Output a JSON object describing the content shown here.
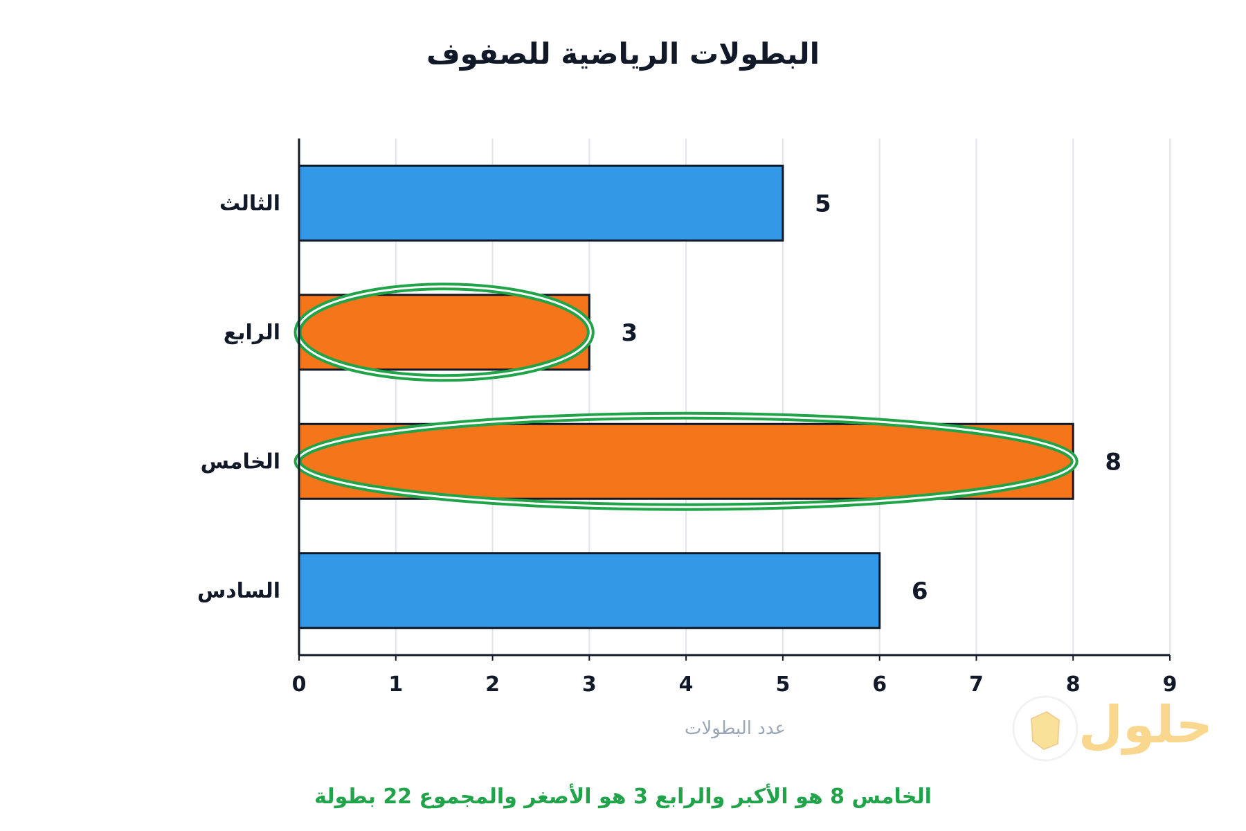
{
  "chart_data": {
    "type": "bar",
    "orientation": "horizontal",
    "title": "البطولات الرياضية للصفوف",
    "xlabel": "عدد البطولات",
    "ylabel": "",
    "categories": [
      "الثالث",
      "الرابع",
      "الخامس",
      "السادس"
    ],
    "values": [
      5,
      3,
      8,
      6
    ],
    "data_labels": [
      "5",
      "3",
      "8",
      "6"
    ],
    "highlighted": [
      false,
      true,
      true,
      false
    ],
    "xlim": [
      0,
      9
    ],
    "xticks": [
      0,
      1,
      2,
      3,
      4,
      5,
      6,
      7,
      8,
      9
    ],
    "xtick_labels": [
      "0",
      "1",
      "2",
      "3",
      "4",
      "5",
      "6",
      "7",
      "8",
      "9"
    ],
    "grid": true,
    "annotation": "الخامس 8 هو الأكبر والرابع 3 هو الأصغر والمجموع 22 بطولة",
    "colors": {
      "bar": "#3399e6",
      "highlight_bar": "#f5761a",
      "highlight_ring": "#21a34a",
      "annotation": "#21a34a",
      "axis_title": "#9aa5b5",
      "grid": "#dfe5ec",
      "text": "#111827"
    }
  },
  "watermark": {
    "text": "حلول",
    "icon": "book-icon"
  }
}
